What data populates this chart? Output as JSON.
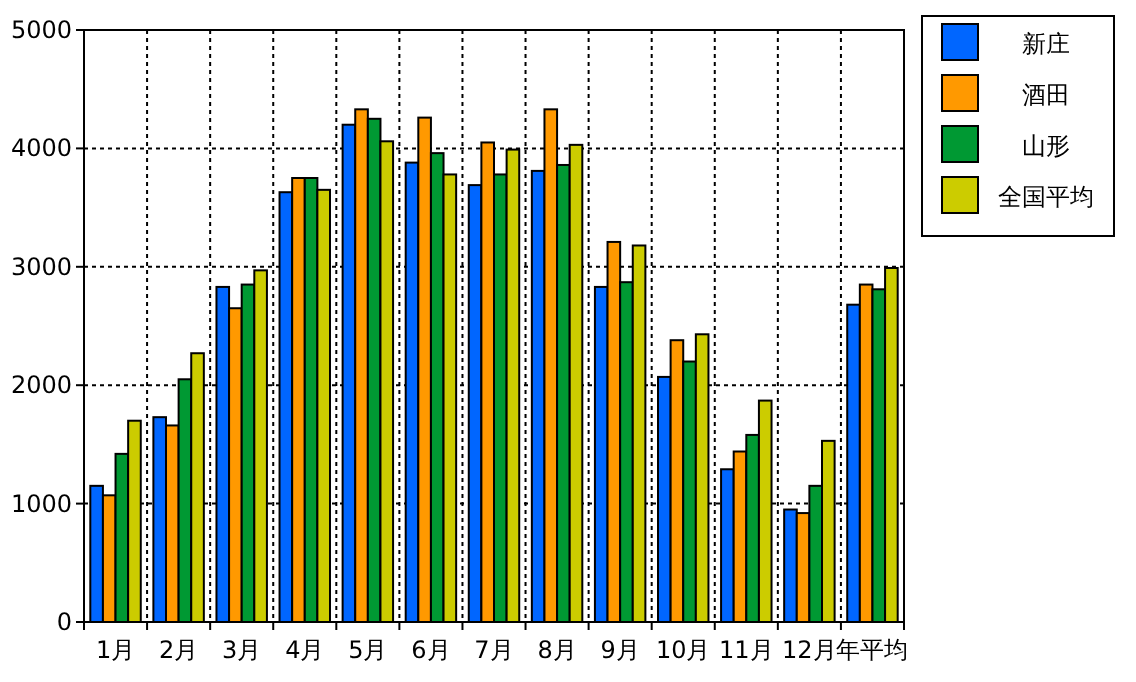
{
  "chart_data": {
    "type": "bar",
    "categories": [
      "1月",
      "2月",
      "3月",
      "4月",
      "5月",
      "6月",
      "7月",
      "8月",
      "9月",
      "10月",
      "11月",
      "12月",
      "年平均"
    ],
    "series": [
      {
        "name": "新庄",
        "color": "#0066ff",
        "values": [
          1150,
          1730,
          2830,
          3630,
          4200,
          3880,
          3690,
          3810,
          2830,
          2070,
          1290,
          950,
          2680
        ]
      },
      {
        "name": "酒田",
        "color": "#ff9900",
        "values": [
          1070,
          1660,
          2650,
          3750,
          4330,
          4260,
          4050,
          4330,
          3210,
          2380,
          1440,
          920,
          2850
        ]
      },
      {
        "name": "山形",
        "color": "#009933",
        "values": [
          1420,
          2050,
          2850,
          3750,
          4250,
          3960,
          3780,
          3860,
          2870,
          2200,
          1580,
          1150,
          2810
        ]
      },
      {
        "name": "全国平均",
        "color": "#cccc00",
        "values": [
          1700,
          2270,
          2970,
          3650,
          4060,
          3780,
          3990,
          4030,
          3180,
          2430,
          1870,
          1530,
          2990
        ]
      }
    ],
    "ylim": [
      0,
      5000
    ],
    "yticks": [
      0,
      1000,
      2000,
      3000,
      4000,
      5000
    ],
    "grid": true,
    "legend": "top right"
  }
}
